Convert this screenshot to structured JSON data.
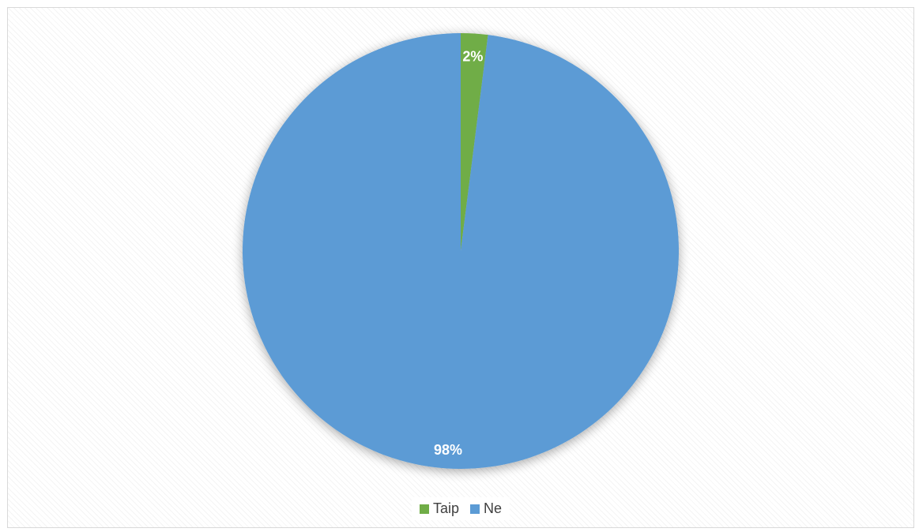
{
  "chart_data": {
    "type": "pie",
    "title": "",
    "categories": [
      "Taip",
      "Ne"
    ],
    "values": [
      2,
      98
    ],
    "labels": [
      "2%",
      "98%"
    ],
    "colors": [
      "#70ad47",
      "#5b9bd5"
    ],
    "legend_position": "bottom"
  },
  "legend": {
    "items": [
      {
        "label": "Taip",
        "color": "#70ad47"
      },
      {
        "label": "Ne",
        "color": "#5b9bd5"
      }
    ]
  }
}
